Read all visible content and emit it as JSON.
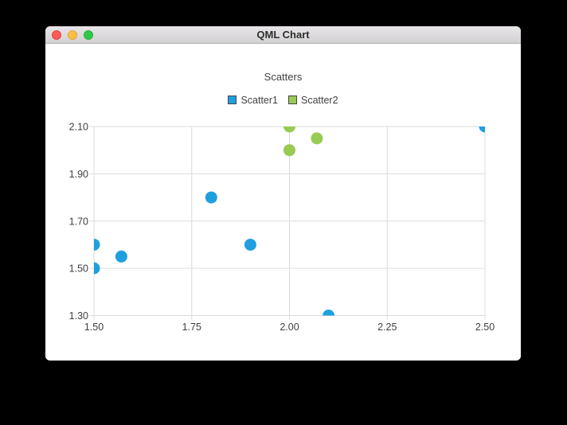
{
  "window": {
    "title": "QML Chart",
    "controls": {
      "close_color": "#fc5b57",
      "minimize_color": "#fdbe41",
      "zoom_color": "#33c748"
    }
  },
  "chart_data": {
    "type": "scatter",
    "title": "Scatters",
    "legend": {
      "position": "top",
      "marker_border": "#45454a"
    },
    "grid": true,
    "grid_color": "#dcdcdc",
    "text_color": "#404044",
    "background": "#ffffff",
    "x_axis": {
      "min": 1.5,
      "max": 2.5,
      "ticks": [
        1.5,
        1.75,
        2.0,
        2.25,
        2.5
      ],
      "tick_labels": [
        "1.50",
        "1.75",
        "2.00",
        "2.25",
        "2.50"
      ]
    },
    "y_axis": {
      "min": 1.3,
      "max": 2.1,
      "ticks": [
        1.3,
        1.5,
        1.7,
        1.9,
        2.1
      ],
      "tick_labels": [
        "1.30",
        "1.50",
        "1.70",
        "1.90",
        "2.10"
      ]
    },
    "series": [
      {
        "name": "Scatter1",
        "color": "#209fdf",
        "marker_size": 15,
        "points": [
          [
            1.5,
            1.5
          ],
          [
            1.5,
            1.6
          ],
          [
            1.57,
            1.55
          ],
          [
            1.8,
            1.8
          ],
          [
            1.9,
            1.6
          ],
          [
            2.1,
            1.3
          ],
          [
            2.5,
            2.1
          ]
        ]
      },
      {
        "name": "Scatter2",
        "color": "#99ca53",
        "marker_size": 15,
        "points": [
          [
            2.0,
            2.0
          ],
          [
            2.0,
            2.1
          ],
          [
            2.07,
            2.05
          ]
        ]
      }
    ]
  }
}
